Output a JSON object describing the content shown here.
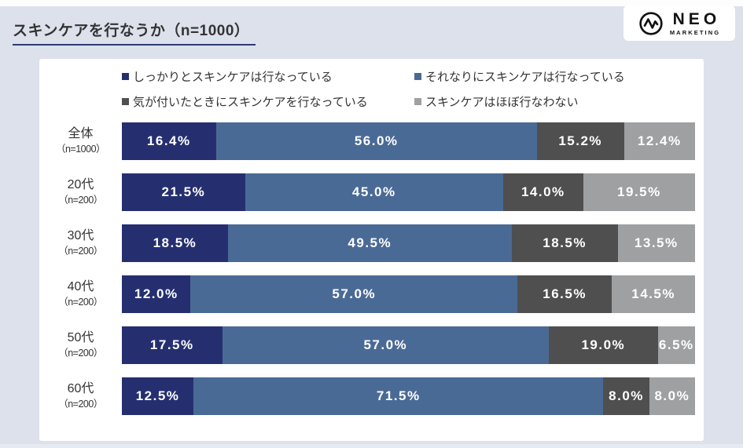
{
  "title": "スキンケアを行なうか（n=1000）",
  "logo": {
    "name": "NEO",
    "sub": "MARKETING"
  },
  "legend": [
    {
      "label": "しっかりとスキンケアは行なっている",
      "color": "#252f70"
    },
    {
      "label": "それなりにスキンケアは行なっている",
      "color": "#4a6a96"
    },
    {
      "label": "気が付いたときにスキンケアを行なっている",
      "color": "#4f4f4f"
    },
    {
      "label": "スキンケアはほぼ行なわない",
      "color": "#9fa0a2"
    }
  ],
  "chart_data": {
    "type": "bar",
    "stacked": true,
    "orientation": "horizontal",
    "unit": "%",
    "title": "スキンケアを行なうか（n=1000）",
    "categories": [
      "全体",
      "20代",
      "30代",
      "40代",
      "50代",
      "60代"
    ],
    "category_sublabels": [
      "（n=1000）",
      "（n=200）",
      "（n=200）",
      "（n=200）",
      "（n=200）",
      "（n=200）"
    ],
    "series": [
      {
        "name": "しっかりとスキンケアは行なっている",
        "color": "#252f70",
        "values": [
          16.4,
          21.5,
          18.5,
          12.0,
          17.5,
          12.5
        ]
      },
      {
        "name": "それなりにスキンケアは行なっている",
        "color": "#4a6a96",
        "values": [
          56.0,
          45.0,
          49.5,
          57.0,
          57.0,
          71.5
        ]
      },
      {
        "name": "気が付いたときにスキンケアを行なっている",
        "color": "#4f4f4f",
        "values": [
          15.2,
          14.0,
          18.5,
          16.5,
          19.0,
          8.0
        ]
      },
      {
        "name": "スキンケアはほぼ行なわない",
        "color": "#9fa0a2",
        "values": [
          12.4,
          19.5,
          13.5,
          14.5,
          6.5,
          8.0
        ]
      }
    ],
    "xlim": [
      0,
      100
    ],
    "value_label_format": "{value}%",
    "legend_position": "top",
    "grid": false
  },
  "colors": {
    "background": "#dce1eb",
    "panel": "#ffffff",
    "title_text": "#333333",
    "title_underline": "#2b3a78",
    "bar_value_text": "#ffffff",
    "category_text": "#333333",
    "logo_text": "#111111"
  }
}
